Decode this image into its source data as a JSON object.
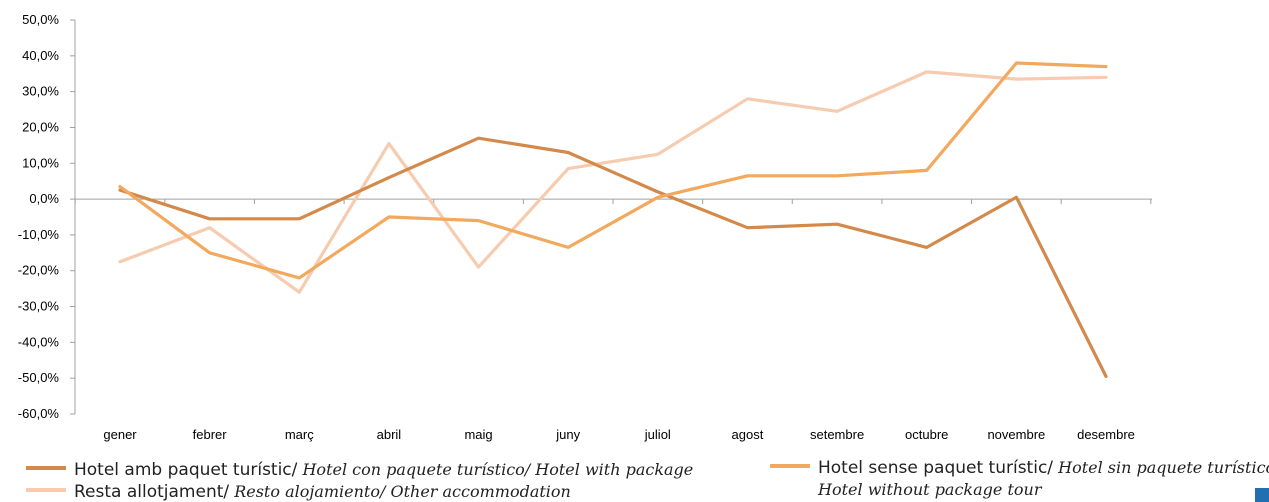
{
  "colors": {
    "package": "#D3894A",
    "no_package": "#F2A95D",
    "other": "#F6CBB0",
    "axis": "#A0A0A0",
    "corner": "#1F6FB2"
  },
  "chart_data": {
    "type": "line",
    "categories": [
      "gener",
      "febrer",
      "març",
      "abril",
      "maig",
      "juny",
      "juliol",
      "agost",
      "setembre",
      "octubre",
      "novembre",
      "desembre"
    ],
    "y_ticks": [
      "50,0%",
      "40,0%",
      "30,0%",
      "20,0%",
      "10,0%",
      "0,0%",
      "-10,0%",
      "-20,0%",
      "-30,0%",
      "-40,0%",
      "-50,0%",
      "-60,0%"
    ],
    "ylim": [
      -60,
      50
    ],
    "grid": false,
    "legend_position": "bottom",
    "series": [
      {
        "name": "Hotel amb paquet turístic/ Hotel con paquete turístico/ Hotel with package",
        "color_key": "package",
        "values": [
          2.5,
          -5.5,
          -5.5,
          6.0,
          17.0,
          13.0,
          2.0,
          -8.0,
          -7.0,
          -13.5,
          0.5,
          -49.5
        ]
      },
      {
        "name": "Hotel sense paquet turístic/ Hotel sin paquete turístico Hotel without package tour",
        "color_key": "no_package",
        "values": [
          3.5,
          -15.0,
          -22.0,
          -5.0,
          -6.0,
          -13.5,
          0.5,
          6.5,
          6.5,
          8.0,
          38.0,
          37.0
        ]
      },
      {
        "name": "Resta allotjament/ Resto alojamiento/ Other accommodation",
        "color_key": "other",
        "values": [
          -17.5,
          -8.0,
          -26.0,
          15.5,
          -19.0,
          8.5,
          12.5,
          28.0,
          24.5,
          35.5,
          33.5,
          34.0
        ]
      }
    ]
  },
  "legend": {
    "item1_regular": "Hotel amb paquet turístic/",
    "item1_italic": " Hotel con paquete turístico/ Hotel with package",
    "item2_regular": "Hotel sense paquet turístic/",
    "item2_italic": " Hotel sin paquete turístico",
    "item2_line2": "Hotel without package tour",
    "item3_regular": "Resta allotjament/",
    "item3_italic": " Resto alojamiento/ Other accommodation"
  }
}
